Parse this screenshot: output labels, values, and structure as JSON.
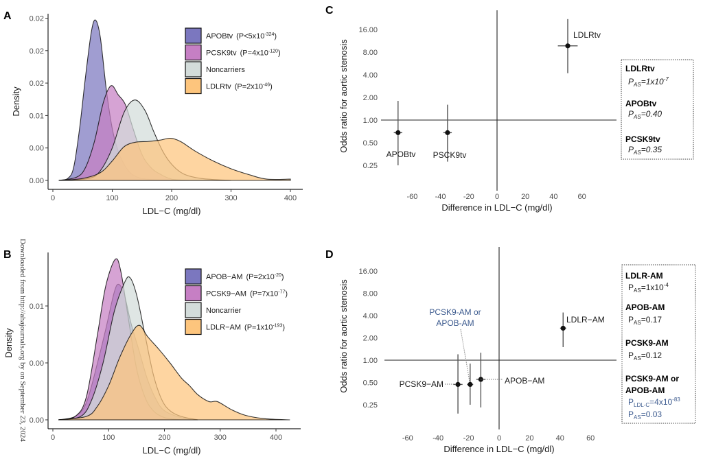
{
  "watermark": "Downloaded from http://ahajournals.org by on September 23, 2024",
  "chart_data": [
    {
      "panel": "A",
      "type": "area",
      "xlabel": "LDL−C (mg/dl)",
      "ylabel": "Density",
      "xlim": [
        0,
        420
      ],
      "ylim": [
        0,
        0.025
      ],
      "xticks": [
        0,
        100,
        200,
        300,
        400
      ],
      "yticks": [
        0,
        0.005,
        0.01,
        0.015,
        0.02,
        0.025
      ],
      "ytick_labels": [
        "0.00",
        "0.00",
        "0.01",
        "0.02",
        "0.02",
        "0.02"
      ],
      "legend_position": "top-right",
      "series": [
        {
          "name": "APOBtv",
          "p_text": "(P<5x10",
          "p_exp": "-324",
          "color": "#7b77bf",
          "points": [
            [
              10,
              0
            ],
            [
              25,
              0.0003
            ],
            [
              35,
              0.002
            ],
            [
              45,
              0.008
            ],
            [
              55,
              0.016
            ],
            [
              65,
              0.023
            ],
            [
              72,
              0.0247
            ],
            [
              80,
              0.022
            ],
            [
              90,
              0.014
            ],
            [
              100,
              0.008
            ],
            [
              110,
              0.0045
            ],
            [
              120,
              0.0025
            ],
            [
              130,
              0.0012
            ],
            [
              140,
              0.0006
            ],
            [
              150,
              0.0003
            ],
            [
              170,
              0.0001
            ],
            [
              200,
              0
            ]
          ]
        },
        {
          "name": "PCSK9tv",
          "p_text": "(P=4x10",
          "p_exp": "-120",
          "color": "#c67fc4",
          "points": [
            [
              10,
              0
            ],
            [
              40,
              0.0005
            ],
            [
              55,
              0.002
            ],
            [
              70,
              0.006
            ],
            [
              85,
              0.012
            ],
            [
              98,
              0.0146
            ],
            [
              110,
              0.0132
            ],
            [
              122,
              0.0117
            ],
            [
              135,
              0.008
            ],
            [
              150,
              0.004
            ],
            [
              165,
              0.002
            ],
            [
              180,
              0.001
            ],
            [
              200,
              0.0002
            ],
            [
              230,
              0
            ]
          ]
        },
        {
          "name": "Noncarriers",
          "p_text": "",
          "p_exp": "",
          "color": "#d3dcda",
          "points": [
            [
              10,
              0
            ],
            [
              60,
              0.0003
            ],
            [
              80,
              0.0015
            ],
            [
              100,
              0.005
            ],
            [
              120,
              0.0105
            ],
            [
              138,
              0.0124
            ],
            [
              155,
              0.0108
            ],
            [
              170,
              0.0075
            ],
            [
              185,
              0.0045
            ],
            [
              200,
              0.0025
            ],
            [
              220,
              0.001
            ],
            [
              250,
              0.0003
            ],
            [
              300,
              0
            ]
          ]
        },
        {
          "name": "LDLRtv",
          "p_text": "(P=2x10",
          "p_exp": "-46",
          "color": "#fdc57d",
          "points": [
            [
              10,
              0
            ],
            [
              50,
              0.0003
            ],
            [
              80,
              0.0012
            ],
            [
              100,
              0.003
            ],
            [
              120,
              0.0052
            ],
            [
              140,
              0.0059
            ],
            [
              160,
              0.006
            ],
            [
              180,
              0.0062
            ],
            [
              198,
              0.0065
            ],
            [
              215,
              0.006
            ],
            [
              240,
              0.0045
            ],
            [
              270,
              0.003
            ],
            [
              300,
              0.0018
            ],
            [
              330,
              0.0009
            ],
            [
              360,
              0.0002
            ],
            [
              400,
              0.0002
            ]
          ]
        }
      ]
    },
    {
      "panel": "B",
      "type": "area",
      "xlabel": "LDL−C (mg/dl)",
      "ylabel": "Density",
      "xlim": [
        0,
        430
      ],
      "ylim": [
        0,
        0.015
      ],
      "xticks": [
        0,
        100,
        200,
        300,
        400
      ],
      "yticks": [
        0,
        0.005,
        0.01
      ],
      "ytick_labels": [
        "0.00",
        "0.00",
        "0.01"
      ],
      "legend_position": "top-right",
      "series": [
        {
          "name": "APOB−AM",
          "p_text": "(P=2x10",
          "p_exp": "-20",
          "color": "#7b77bf",
          "points": [
            [
              10,
              0
            ],
            [
              40,
              0.0003
            ],
            [
              60,
              0.0015
            ],
            [
              80,
              0.005
            ],
            [
              95,
              0.008
            ],
            [
              110,
              0.0112
            ],
            [
              118,
              0.0119
            ],
            [
              128,
              0.011
            ],
            [
              140,
              0.0085
            ],
            [
              155,
              0.006
            ],
            [
              170,
              0.0035
            ],
            [
              185,
              0.0018
            ],
            [
              200,
              0.0008
            ],
            [
              230,
              0.0002
            ],
            [
              260,
              0
            ]
          ]
        },
        {
          "name": "PCSK9−AM",
          "p_text": "(P=7x10",
          "p_exp": "-77",
          "color": "#c67fc4",
          "points": [
            [
              10,
              0
            ],
            [
              40,
              0.0003
            ],
            [
              60,
              0.002
            ],
            [
              80,
              0.0075
            ],
            [
              95,
              0.0118
            ],
            [
              112,
              0.0141
            ],
            [
              122,
              0.013
            ],
            [
              135,
              0.009
            ],
            [
              150,
              0.0045
            ],
            [
              165,
              0.002
            ],
            [
              180,
              0.0008
            ],
            [
              200,
              0.0002
            ],
            [
              230,
              0
            ]
          ]
        },
        {
          "name": "Noncarrier",
          "p_text": "",
          "p_exp": "",
          "color": "#d3dcda",
          "points": [
            [
              10,
              0
            ],
            [
              50,
              0.0003
            ],
            [
              70,
              0.0018
            ],
            [
              90,
              0.005
            ],
            [
              110,
              0.0095
            ],
            [
              128,
              0.012
            ],
            [
              138,
              0.0125
            ],
            [
              150,
              0.011
            ],
            [
              165,
              0.0075
            ],
            [
              180,
              0.004
            ],
            [
              195,
              0.0018
            ],
            [
              210,
              0.0008
            ],
            [
              230,
              0.0003
            ],
            [
              260,
              0
            ]
          ]
        },
        {
          "name": "LDLR−AM",
          "p_text": "(P=1x10",
          "p_exp": "-193",
          "color": "#fdc57d",
          "points": [
            [
              10,
              0
            ],
            [
              60,
              0.0003
            ],
            [
              80,
              0.0012
            ],
            [
              100,
              0.003
            ],
            [
              120,
              0.0055
            ],
            [
              140,
              0.0075
            ],
            [
              155,
              0.0083
            ],
            [
              170,
              0.0073
            ],
            [
              190,
              0.0062
            ],
            [
              210,
              0.005
            ],
            [
              230,
              0.0037
            ],
            [
              245,
              0.003
            ],
            [
              260,
              0.0022
            ],
            [
              280,
              0.0016
            ],
            [
              295,
              0.0016
            ],
            [
              320,
              0.0009
            ],
            [
              345,
              0.0004
            ],
            [
              380,
              0.0001
            ],
            [
              425,
              0
            ]
          ]
        }
      ]
    },
    {
      "panel": "C",
      "type": "scatter",
      "xlabel": "Difference in LDL−C (mg/dl)",
      "ylabel": "Odds ratio for  aortic stenosis",
      "xticks": [
        -60,
        -40,
        -20,
        0,
        20,
        40,
        60
      ],
      "yticks": [
        16,
        8,
        4,
        2,
        1,
        0.5,
        0.25
      ],
      "ytick_labels": [
        "16.00",
        "8.00",
        "4.00",
        "2.00",
        "1.00",
        "0.50",
        "0.25"
      ],
      "y_scale": "log2",
      "points": [
        {
          "label": "APOBtv",
          "x": -70,
          "x_lo": -73,
          "x_hi": -67,
          "or": 0.68,
          "or_lo": 0.25,
          "or_hi": 1.8
        },
        {
          "label": "PSCK9tv",
          "x": -35,
          "x_lo": -38,
          "x_hi": -32,
          "or": 0.68,
          "or_lo": 0.28,
          "or_hi": 1.6
        },
        {
          "label": "LDLRtv",
          "x": 50,
          "x_lo": 43,
          "x_hi": 57,
          "or": 9.7,
          "or_lo": 4.2,
          "or_hi": 22
        }
      ],
      "summary": [
        {
          "title": "LDLRtv",
          "p_sub": "AS",
          "p_value": "=1x10",
          "p_exp": "-7"
        },
        {
          "title": "APOBtv",
          "p_sub": "AS",
          "p_value": "=0.40",
          "p_exp": ""
        },
        {
          "title": "PCSK9tv",
          "p_sub": "AS",
          "p_value": "=0.35",
          "p_exp": ""
        }
      ]
    },
    {
      "panel": "D",
      "type": "scatter",
      "xlabel": "Difference in LDL−C (mg/dl)",
      "ylabel": "Odds ratio for  aortic stenosis",
      "xticks": [
        -60,
        -40,
        -20,
        0,
        20,
        40,
        60
      ],
      "yticks": [
        16,
        8,
        4,
        2,
        1,
        0.5,
        0.25
      ],
      "ytick_labels": [
        "16.00",
        "8.00",
        "4.00",
        "2.00",
        "1.00",
        "0.50",
        "0.25"
      ],
      "y_scale": "log2",
      "points": [
        {
          "label": "PCSK9−AM",
          "x": -27,
          "x_lo": -30,
          "x_hi": -24,
          "or": 0.47,
          "or_lo": 0.19,
          "or_hi": 1.2
        },
        {
          "label": "PCSK9-AM or APOB-AM",
          "x": -19,
          "x_lo": -21,
          "x_hi": -17,
          "or": 0.47,
          "or_lo": 0.25,
          "or_hi": 0.9
        },
        {
          "label": "APOB−AM",
          "x": -12,
          "x_lo": -15,
          "x_hi": -9,
          "or": 0.55,
          "or_lo": 0.23,
          "or_hi": 1.26
        },
        {
          "label": "LDLR−AM",
          "x": 42,
          "x_lo": 40,
          "x_hi": 44,
          "or": 2.7,
          "or_lo": 1.5,
          "or_hi": 4.4
        }
      ],
      "combined_label_lines": [
        "PCSK9-AM or",
        "APOB-AM"
      ],
      "combined_label_color": "#3d5b8f",
      "summary": [
        {
          "title": "LDLR-AM",
          "p_sub": "AS",
          "p_value": "=1x10",
          "p_exp": "-4"
        },
        {
          "title": "APOB-AM",
          "p_sub": "AS",
          "p_value": "=0.17",
          "p_exp": ""
        },
        {
          "title": "PCSK9-AM",
          "p_sub": "AS",
          "p_value": "=0.12",
          "p_exp": ""
        }
      ],
      "combined_summary": {
        "title_lines": [
          "PCSK9-AM or",
          "APOB-AM"
        ],
        "p_ldl_sub": "LDL-C",
        "p_ldl_value": "=4x10",
        "p_ldl_exp": "-83",
        "p_as_sub": "AS",
        "p_as_value": "=0.03"
      }
    }
  ]
}
